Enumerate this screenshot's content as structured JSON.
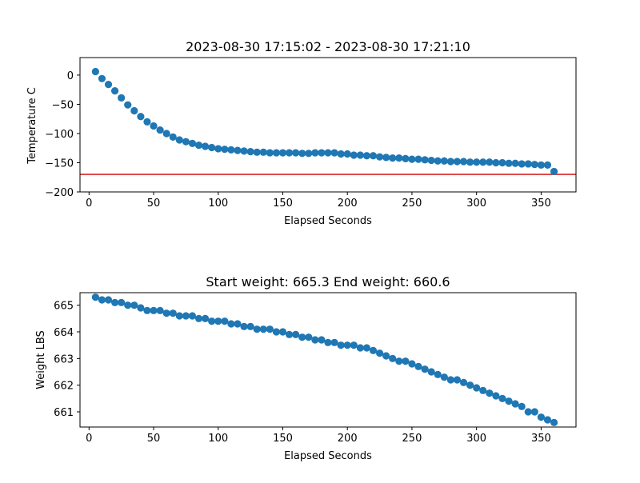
{
  "chart_data": [
    {
      "type": "scatter",
      "title": "2023-08-30 17:15:02 - 2023-08-30 17:21:10",
      "xlabel": "Elapsed Seconds",
      "ylabel": "Temperature C",
      "xlim": [
        -7,
        377
      ],
      "ylim": [
        -200,
        30
      ],
      "xticks": [
        0,
        50,
        100,
        150,
        200,
        250,
        300,
        350
      ],
      "yticks": [
        -200,
        -150,
        -100,
        -50,
        0
      ],
      "ytick_labels": [
        "−200",
        "−150",
        "−100",
        "−50",
        "0"
      ],
      "grid": false,
      "marker_color": "#1f77b4",
      "reference_line": {
        "y": -170,
        "color": "#d62728"
      },
      "x": [
        5,
        10,
        15,
        20,
        25,
        30,
        35,
        40,
        45,
        50,
        55,
        60,
        65,
        70,
        75,
        80,
        85,
        90,
        95,
        100,
        105,
        110,
        115,
        120,
        125,
        130,
        135,
        140,
        145,
        150,
        155,
        160,
        165,
        170,
        175,
        180,
        185,
        190,
        195,
        200,
        205,
        210,
        215,
        220,
        225,
        230,
        235,
        240,
        245,
        250,
        255,
        260,
        265,
        270,
        275,
        280,
        285,
        290,
        295,
        300,
        305,
        310,
        315,
        320,
        325,
        330,
        335,
        340,
        345,
        350,
        355,
        360
      ],
      "y": [
        6,
        -6,
        -16,
        -27,
        -39,
        -51,
        -61,
        -71,
        -80,
        -87,
        -94,
        -100,
        -106,
        -111,
        -114,
        -117,
        -120,
        -122,
        -124,
        -126,
        -127,
        -128,
        -129,
        -130,
        -131,
        -132,
        -132,
        -133,
        -133,
        -133,
        -133,
        -133,
        -134,
        -134,
        -133,
        -133,
        -133,
        -133,
        -135,
        -135,
        -137,
        -137,
        -138,
        -138,
        -140,
        -141,
        -142,
        -142,
        -143,
        -144,
        -144,
        -145,
        -146,
        -147,
        -147,
        -148,
        -148,
        -148,
        -149,
        -149,
        -149,
        -149,
        -150,
        -150,
        -151,
        -151,
        -152,
        -152,
        -153,
        -154,
        -154,
        -165
      ]
    },
    {
      "type": "scatter",
      "title": "Start weight: 665.3 End weight: 660.6",
      "xlabel": "Elapsed Seconds",
      "ylabel": "Weight LBS",
      "xlim": [
        -7,
        377
      ],
      "ylim": [
        660.43,
        665.47
      ],
      "xticks": [
        0,
        50,
        100,
        150,
        200,
        250,
        300,
        350
      ],
      "yticks": [
        661,
        662,
        663,
        664,
        665
      ],
      "ytick_labels": [
        "661",
        "662",
        "663",
        "664",
        "665"
      ],
      "grid": false,
      "marker_color": "#1f77b4",
      "x": [
        5,
        10,
        15,
        20,
        25,
        30,
        35,
        40,
        45,
        50,
        55,
        60,
        65,
        70,
        75,
        80,
        85,
        90,
        95,
        100,
        105,
        110,
        115,
        120,
        125,
        130,
        135,
        140,
        145,
        150,
        155,
        160,
        165,
        170,
        175,
        180,
        185,
        190,
        195,
        200,
        205,
        210,
        215,
        220,
        225,
        230,
        235,
        240,
        245,
        250,
        255,
        260,
        265,
        270,
        275,
        280,
        285,
        290,
        295,
        300,
        305,
        310,
        315,
        320,
        325,
        330,
        335,
        340,
        345,
        350,
        355,
        360
      ],
      "y": [
        665.3,
        665.2,
        665.2,
        665.1,
        665.1,
        665.0,
        665.0,
        664.9,
        664.8,
        664.8,
        664.8,
        664.7,
        664.7,
        664.6,
        664.6,
        664.6,
        664.5,
        664.5,
        664.4,
        664.4,
        664.4,
        664.3,
        664.3,
        664.2,
        664.2,
        664.1,
        664.1,
        664.1,
        664.0,
        664.0,
        663.9,
        663.9,
        663.8,
        663.8,
        663.7,
        663.7,
        663.6,
        663.6,
        663.5,
        663.5,
        663.5,
        663.4,
        663.4,
        663.3,
        663.2,
        663.1,
        663.0,
        662.9,
        662.9,
        662.8,
        662.7,
        662.6,
        662.5,
        662.4,
        662.3,
        662.2,
        662.2,
        662.1,
        662.0,
        661.9,
        661.8,
        661.7,
        661.6,
        661.5,
        661.4,
        661.3,
        661.2,
        661.0,
        661.0,
        660.8,
        660.7,
        660.6
      ]
    }
  ]
}
